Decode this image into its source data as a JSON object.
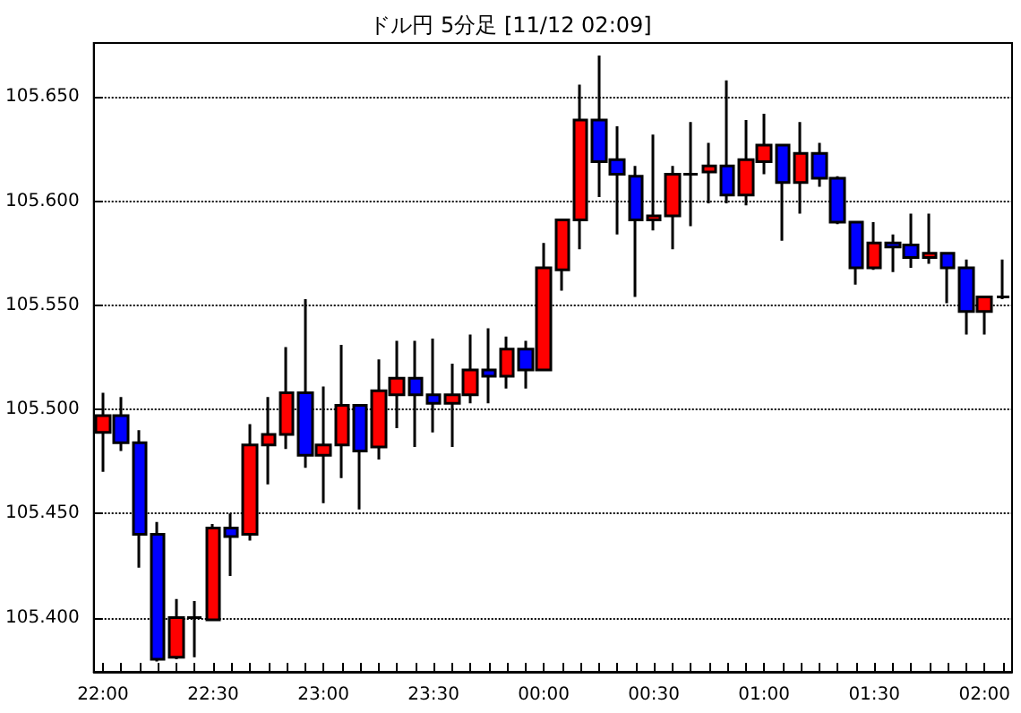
{
  "chart_data": {
    "type": "candlestick",
    "title": "ドル円 5分足 [11/12 02:09]",
    "categories": [
      "22:00",
      null,
      null,
      null,
      null,
      null,
      "22:30",
      null,
      null,
      null,
      null,
      null,
      "23:00",
      null,
      null,
      null,
      null,
      null,
      "23:30",
      null,
      null,
      null,
      null,
      null,
      "00:00",
      null,
      null,
      null,
      null,
      null,
      "00:30",
      null,
      null,
      null,
      null,
      null,
      "01:00",
      null,
      null,
      null,
      null,
      null,
      "01:30",
      null,
      null,
      null,
      null,
      null,
      "02:00",
      null
    ],
    "ohlc": [
      [
        105.489,
        105.508,
        105.47,
        105.497
      ],
      [
        105.497,
        105.506,
        105.48,
        105.484
      ],
      [
        105.484,
        105.49,
        105.424,
        105.44
      ],
      [
        105.44,
        105.446,
        105.379,
        105.38
      ],
      [
        105.381,
        105.409,
        105.38,
        105.4
      ],
      [
        105.4,
        105.408,
        105.381,
        105.4
      ],
      [
        105.399,
        105.445,
        105.399,
        105.443
      ],
      [
        105.443,
        105.45,
        105.42,
        105.439
      ],
      [
        105.44,
        105.493,
        105.437,
        105.483
      ],
      [
        105.483,
        105.506,
        105.464,
        105.488
      ],
      [
        105.488,
        105.53,
        105.481,
        105.508
      ],
      [
        105.508,
        105.553,
        105.472,
        105.478
      ],
      [
        105.478,
        105.511,
        105.455,
        105.483
      ],
      [
        105.483,
        105.531,
        105.467,
        105.502
      ],
      [
        105.502,
        105.502,
        105.452,
        105.48
      ],
      [
        105.482,
        105.524,
        105.476,
        105.509
      ],
      [
        105.507,
        105.533,
        105.491,
        105.515
      ],
      [
        105.515,
        105.533,
        105.482,
        105.507
      ],
      [
        105.507,
        105.534,
        105.489,
        105.503
      ],
      [
        105.503,
        105.522,
        105.482,
        105.507
      ],
      [
        105.507,
        105.536,
        105.503,
        105.519
      ],
      [
        105.519,
        105.539,
        105.503,
        105.516
      ],
      [
        105.516,
        105.535,
        105.51,
        105.529
      ],
      [
        105.529,
        105.533,
        105.51,
        105.519
      ],
      [
        105.519,
        105.58,
        105.519,
        105.568
      ],
      [
        105.567,
        105.591,
        105.557,
        105.591
      ],
      [
        105.591,
        105.656,
        105.577,
        105.639
      ],
      [
        105.639,
        105.67,
        105.602,
        105.619
      ],
      [
        105.62,
        105.636,
        105.584,
        105.613
      ],
      [
        105.612,
        105.617,
        105.554,
        105.591
      ],
      [
        105.591,
        105.632,
        105.586,
        105.593
      ],
      [
        105.593,
        105.617,
        105.577,
        105.613
      ],
      [
        105.613,
        105.638,
        105.588,
        105.613
      ],
      [
        105.614,
        105.628,
        105.599,
        105.617
      ],
      [
        105.617,
        105.658,
        105.599,
        105.603
      ],
      [
        105.603,
        105.639,
        105.598,
        105.62
      ],
      [
        105.619,
        105.642,
        105.613,
        105.627
      ],
      [
        105.627,
        105.627,
        105.581,
        105.609
      ],
      [
        105.609,
        105.638,
        105.594,
        105.623
      ],
      [
        105.623,
        105.628,
        105.607,
        105.611
      ],
      [
        105.611,
        105.612,
        105.589,
        105.59
      ],
      [
        105.59,
        105.59,
        105.56,
        105.568
      ],
      [
        105.568,
        105.59,
        105.567,
        105.58
      ],
      [
        105.58,
        105.584,
        105.566,
        105.578
      ],
      [
        105.579,
        105.594,
        105.568,
        105.573
      ],
      [
        105.573,
        105.594,
        105.57,
        105.575
      ],
      [
        105.575,
        105.575,
        105.551,
        105.568
      ],
      [
        105.568,
        105.572,
        105.536,
        105.547
      ],
      [
        105.547,
        105.554,
        105.536,
        105.554
      ],
      [
        105.554,
        105.572,
        105.553,
        105.554
      ]
    ],
    "colors": [
      "#ff0000",
      "#0000ff",
      "#0000ff",
      "#0000ff",
      "#ff0000",
      "#000000",
      "#ff0000",
      "#0000ff",
      "#ff0000",
      "#ff0000",
      "#ff0000",
      "#0000ff",
      "#ff0000",
      "#ff0000",
      "#0000ff",
      "#ff0000",
      "#ff0000",
      "#0000ff",
      "#0000ff",
      "#ff0000",
      "#ff0000",
      "#0000ff",
      "#ff0000",
      "#0000ff",
      "#ff0000",
      "#ff0000",
      "#ff0000",
      "#0000ff",
      "#0000ff",
      "#0000ff",
      "#ff0000",
      "#ff0000",
      "#000000",
      "#ff0000",
      "#0000ff",
      "#ff0000",
      "#ff0000",
      "#0000ff",
      "#ff0000",
      "#0000ff",
      "#0000ff",
      "#0000ff",
      "#ff0000",
      "#0000ff",
      "#0000ff",
      "#ff0000",
      "#0000ff",
      "#0000ff",
      "#ff0000",
      "#000000"
    ],
    "ylim": [
      105.374,
      105.676
    ],
    "yticks": [
      {
        "value": 105.4,
        "label": "105.400"
      },
      {
        "value": 105.45,
        "label": "105.450"
      },
      {
        "value": 105.5,
        "label": "105.500"
      },
      {
        "value": 105.55,
        "label": "105.550"
      },
      {
        "value": 105.6,
        "label": "105.600"
      },
      {
        "value": 105.65,
        "label": "105.650"
      }
    ],
    "grid": "y"
  }
}
